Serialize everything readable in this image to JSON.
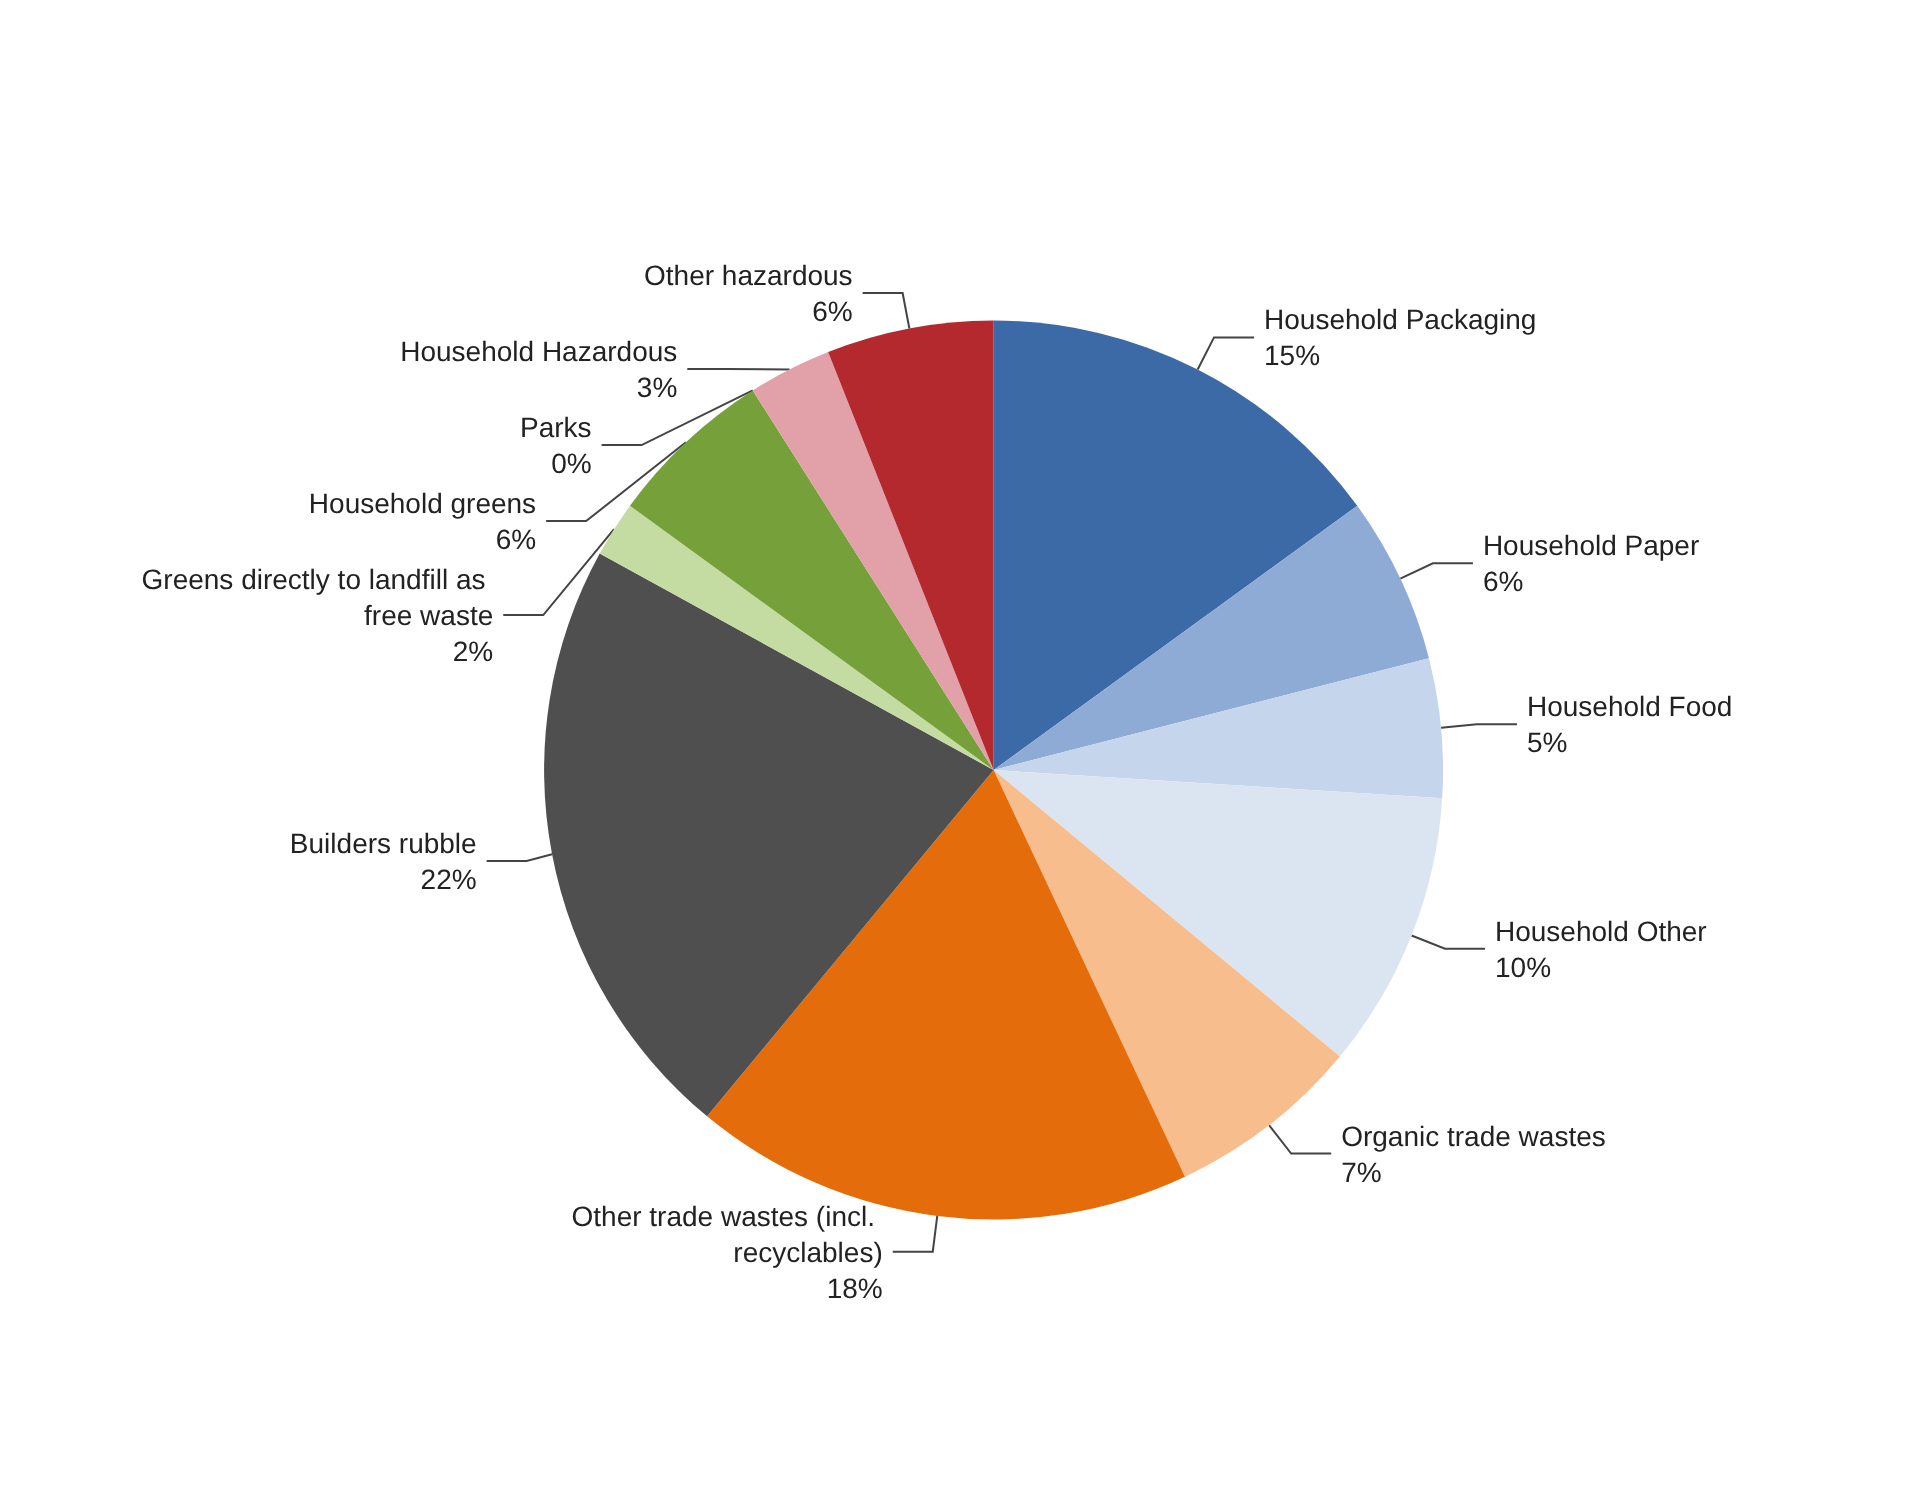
{
  "chart_data": {
    "type": "pie",
    "categories": [
      "Household Packaging",
      "Household Paper",
      "Household Food",
      "Household Other",
      "Organic trade wastes",
      "Other trade wastes (incl. recyclables)",
      "Builders rubble",
      "Greens directly to landfill as free waste",
      "Household greens",
      "Parks",
      "Household Hazardous",
      "Other hazardous"
    ],
    "values": [
      15,
      6,
      5,
      10,
      7,
      18,
      22,
      2,
      6,
      0,
      3,
      6
    ],
    "value_labels": [
      "15%",
      "6%",
      "5%",
      "10%",
      "7%",
      "18%",
      "22%",
      "2%",
      "6%",
      "0%",
      "3%",
      "6%"
    ],
    "colors": [
      "#3b6aa6",
      "#8eabd6",
      "#c5d6ec",
      "#dbe5f2",
      "#f8bd8c",
      "#e46c0a",
      "#4f4f4f",
      "#c4dca2",
      "#76a03a",
      "#6b8c3a",
      "#e2a0a9",
      "#b3292e"
    ],
    "legend": false
  }
}
